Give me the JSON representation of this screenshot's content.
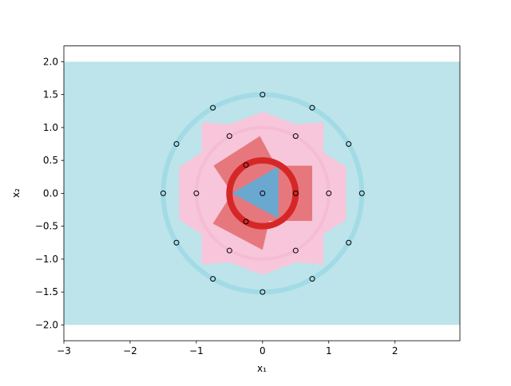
{
  "chart_data": {
    "type": "scatter",
    "xlabel": "x₁",
    "ylabel": "x₂",
    "xlim": [
      -3,
      2.98
    ],
    "ylim": [
      -2.24,
      2.24
    ],
    "xticks": [
      {
        "value": -3,
        "label": "−3"
      },
      {
        "value": -2,
        "label": "−2"
      },
      {
        "value": -1,
        "label": "−1"
      },
      0,
      1,
      2
    ],
    "yticks": [
      {
        "value": -2,
        "label": "−2.0"
      },
      {
        "value": -1.5,
        "label": "−1.5"
      },
      {
        "value": -1,
        "label": "−1.0"
      },
      {
        "value": -0.5,
        "label": "−0.5"
      },
      {
        "value": 0,
        "label": "0.0"
      },
      {
        "value": 0.5,
        "label": "0.5"
      },
      {
        "value": 1,
        "label": "1.0"
      },
      {
        "value": 1.5,
        "label": "1.5"
      },
      {
        "value": 2,
        "label": "2.0"
      }
    ],
    "background": {
      "x": [
        -3,
        2.98
      ],
      "y": [
        -2,
        2
      ],
      "color": "#bce4ea"
    },
    "regions": [
      {
        "color": "#f7c6da",
        "points": [
          [
            0,
            1.24
          ],
          [
            0.5,
            1.05
          ],
          [
            0.92,
            1.08
          ],
          [
            0.92,
            0.62
          ],
          [
            1.26,
            0.4
          ],
          [
            1.26,
            -0.4
          ],
          [
            0.92,
            -0.62
          ],
          [
            0.92,
            -1.08
          ],
          [
            0.5,
            -1.05
          ],
          [
            0,
            -1.24
          ],
          [
            -0.5,
            -1.05
          ],
          [
            -0.92,
            -1.08
          ],
          [
            -0.92,
            -0.62
          ],
          [
            -1.26,
            -0.4
          ],
          [
            -1.26,
            0.4
          ],
          [
            -0.92,
            0.62
          ],
          [
            -0.92,
            1.08
          ],
          [
            -0.5,
            1.05
          ]
        ]
      },
      {
        "color": "#e36a6c",
        "points": [
          [
            -0.74,
            0.42
          ],
          [
            -0.04,
            0.87
          ],
          [
            0.2,
            0.42
          ],
          [
            0.75,
            0.42
          ],
          [
            0.75,
            -0.42
          ],
          [
            0.1,
            -0.42
          ],
          [
            0,
            -0.86
          ],
          [
            -0.75,
            -0.46
          ],
          [
            -0.46,
            0
          ]
        ]
      },
      {
        "color": "#6aa8cf",
        "points": [
          [
            -0.46,
            0
          ],
          [
            0.24,
            0.41
          ],
          [
            0.24,
            -0.38
          ]
        ]
      }
    ],
    "circles": [
      {
        "cx": 0,
        "cy": 0,
        "r": 1.5,
        "color": "#a2dbe6",
        "width": 6
      },
      {
        "cx": 0,
        "cy": 0,
        "r": 1.0,
        "color": "#f5bcd3",
        "width": 4
      },
      {
        "cx": 0,
        "cy": 0,
        "r": 0.5,
        "color": "#d62728",
        "width": 8
      }
    ],
    "x": [
      0,
      0.75,
      1.3,
      1.5,
      1.3,
      0.75,
      0,
      -0.75,
      -1.3,
      -1.5,
      -1.3,
      -0.75,
      0.5,
      1,
      0.5,
      -0.5,
      -1,
      -0.5,
      0.5,
      -0.25,
      -0.25,
      0
    ],
    "y": [
      1.5,
      1.3,
      0.75,
      0,
      -0.75,
      -1.3,
      -1.5,
      -1.3,
      -0.75,
      0,
      0.75,
      1.3,
      0.87,
      0,
      -0.87,
      -0.87,
      0,
      0.87,
      0,
      0.43,
      -0.43,
      0
    ]
  }
}
